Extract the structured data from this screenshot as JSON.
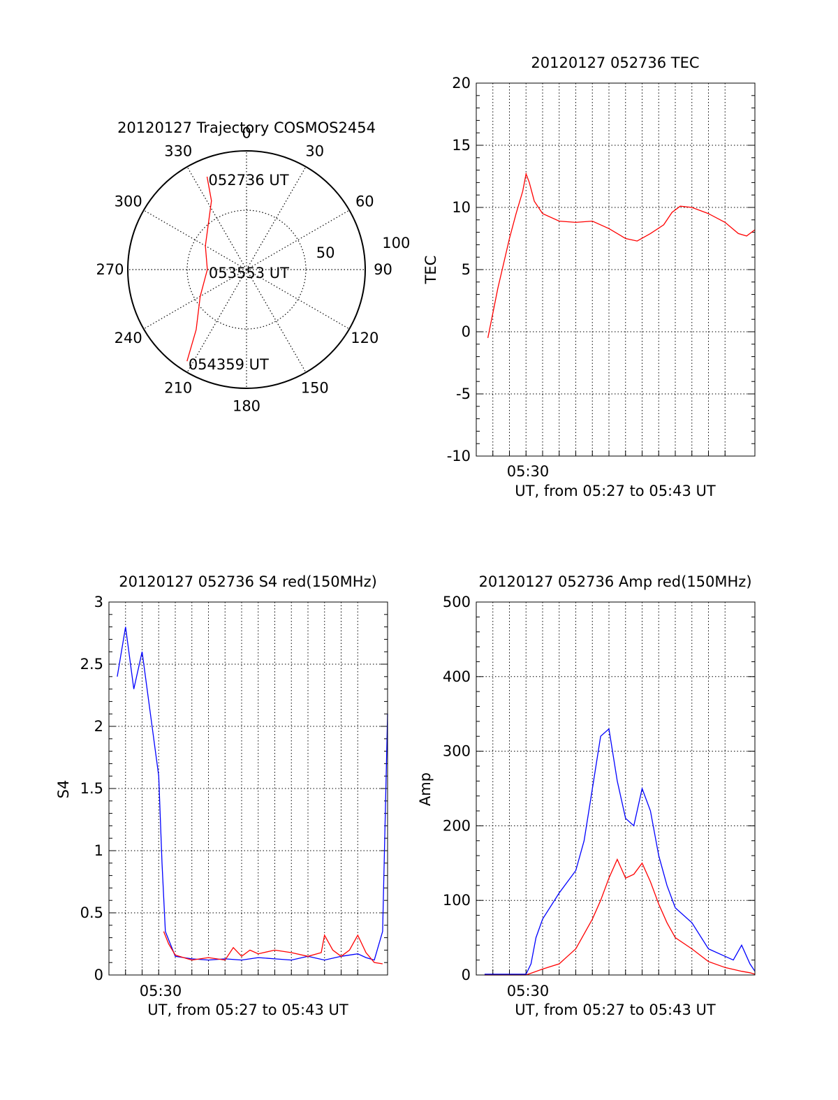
{
  "colors": {
    "red": "#ff0000",
    "blue": "#0000ff",
    "axis": "#000000",
    "grid": "#000000"
  },
  "chart_data": [
    {
      "id": "trajectory",
      "type": "polar",
      "title": "20120127 Trajectory COSMOS2454",
      "angle_labels": [
        "0",
        "30",
        "60",
        "90",
        "120",
        "150",
        "180",
        "210",
        "240",
        "270",
        "300",
        "330"
      ],
      "radial_labels": [
        "50",
        "100"
      ],
      "rlim": [
        0,
        100
      ],
      "grid": true,
      "series": [
        {
          "color": "#ff0000",
          "points": [
            [
              337,
              85
            ],
            [
              333,
              65
            ],
            [
              300,
              40
            ],
            [
              270,
              33
            ],
            [
              240,
              45
            ],
            [
              220,
              66
            ],
            [
              213,
              92
            ]
          ]
        }
      ],
      "annotations": [
        {
          "text": "052736 UT",
          "az": 337,
          "r": 85
        },
        {
          "text": "053553 UT",
          "az": 270,
          "r": 33
        },
        {
          "text": "054359 UT",
          "az": 213,
          "r": 92
        }
      ]
    },
    {
      "id": "tec",
      "type": "line",
      "title": "20120127 052736 TEC",
      "ylabel": "TEC",
      "xlabel": "UT, from 05:27 to 05:43 UT",
      "xtick_label": "05:30",
      "xlim": [
        0,
        16.8
      ],
      "ylim": [
        -10,
        20
      ],
      "yticks": [
        "-10",
        "-5",
        "0",
        "5",
        "10",
        "15",
        "20"
      ],
      "grid": true,
      "series": [
        {
          "color": "#ff0000",
          "x": [
            0.7,
            1.0,
            1.3,
            1.6,
            2.0,
            2.4,
            2.8,
            3.0,
            3.2,
            3.5,
            4.0,
            5.0,
            6.0,
            7.0,
            8.0,
            9.0,
            9.7,
            10.5,
            11.3,
            11.8,
            12.3,
            13.0,
            14.0,
            15.0,
            15.8,
            16.3,
            16.8
          ],
          "y": [
            -0.5,
            1.5,
            3.5,
            5.2,
            7.5,
            9.5,
            11.3,
            12.7,
            12.0,
            10.5,
            9.5,
            8.9,
            8.8,
            8.9,
            8.3,
            7.5,
            7.3,
            7.9,
            8.6,
            9.6,
            10.1,
            10.0,
            9.5,
            8.8,
            7.9,
            7.7,
            8.2
          ]
        }
      ]
    },
    {
      "id": "s4",
      "type": "line",
      "title": "20120127 052736 S4 red(150MHz)",
      "ylabel": "S4",
      "xlabel": "UT, from 05:27 to 05:43 UT",
      "xtick_label": "05:30",
      "xlim": [
        0,
        16.8
      ],
      "ylim": [
        0,
        3
      ],
      "yticks": [
        "0",
        "0.5",
        "1",
        "1.5",
        "2",
        "2.5",
        "3"
      ],
      "grid": true,
      "series": [
        {
          "color": "#0000ff",
          "x": [
            0.5,
            1.0,
            1.5,
            2.0,
            2.5,
            3.0,
            3.2,
            3.4,
            4.0,
            5.0,
            6.0,
            7.0,
            8.0,
            9.0,
            10.0,
            11.0,
            12.0,
            13.0,
            14.0,
            15.0,
            15.5,
            16.0,
            16.5,
            16.8
          ],
          "y": [
            2.4,
            2.8,
            2.3,
            2.6,
            2.1,
            1.6,
            0.9,
            0.35,
            0.15,
            0.13,
            0.12,
            0.13,
            0.12,
            0.14,
            0.13,
            0.12,
            0.15,
            0.12,
            0.15,
            0.17,
            0.14,
            0.12,
            0.35,
            2.1
          ]
        },
        {
          "color": "#ff0000",
          "x": [
            3.3,
            3.6,
            4.0,
            4.5,
            5.0,
            6.0,
            7.0,
            7.5,
            8.0,
            8.5,
            9.0,
            10.0,
            11.0,
            12.0,
            12.8,
            13.0,
            13.5,
            14.0,
            14.5,
            15.0,
            15.5,
            16.0,
            16.5
          ],
          "y": [
            0.35,
            0.25,
            0.16,
            0.14,
            0.12,
            0.14,
            0.12,
            0.22,
            0.15,
            0.2,
            0.17,
            0.2,
            0.18,
            0.15,
            0.18,
            0.32,
            0.2,
            0.15,
            0.2,
            0.32,
            0.18,
            0.1,
            0.09
          ]
        }
      ]
    },
    {
      "id": "amp",
      "type": "line",
      "title": "20120127 052736 Amp red(150MHz)",
      "ylabel": "Amp",
      "xlabel": "UT, from 05:27 to 05:43 UT",
      "xtick_label": "05:30",
      "xlim": [
        0,
        16.8
      ],
      "ylim": [
        0,
        500
      ],
      "yticks": [
        "0",
        "100",
        "200",
        "300",
        "400",
        "500"
      ],
      "grid": true,
      "series": [
        {
          "color": "#0000ff",
          "x": [
            0.5,
            3.0,
            3.3,
            3.6,
            4.0,
            5.0,
            6.0,
            6.5,
            7.0,
            7.5,
            8.0,
            8.5,
            9.0,
            9.5,
            10.0,
            10.5,
            11.0,
            11.5,
            12.0,
            13.0,
            14.0,
            15.0,
            15.5,
            16.0,
            16.5,
            16.8
          ],
          "y": [
            1,
            1,
            15,
            50,
            75,
            110,
            140,
            180,
            250,
            320,
            330,
            260,
            210,
            200,
            250,
            220,
            160,
            120,
            90,
            70,
            35,
            25,
            20,
            40,
            15,
            5
          ]
        },
        {
          "color": "#ff0000",
          "x": [
            0.5,
            3.0,
            4.0,
            5.0,
            5.5,
            6.0,
            6.5,
            7.0,
            7.5,
            8.0,
            8.5,
            9.0,
            9.5,
            10.0,
            10.5,
            11.0,
            11.5,
            12.0,
            13.0,
            14.0,
            15.0,
            16.0,
            16.5,
            16.8
          ],
          "y": [
            0,
            0,
            8,
            15,
            25,
            35,
            55,
            75,
            100,
            130,
            155,
            130,
            135,
            150,
            125,
            95,
            70,
            50,
            35,
            18,
            10,
            5,
            3,
            1
          ]
        }
      ]
    }
  ]
}
